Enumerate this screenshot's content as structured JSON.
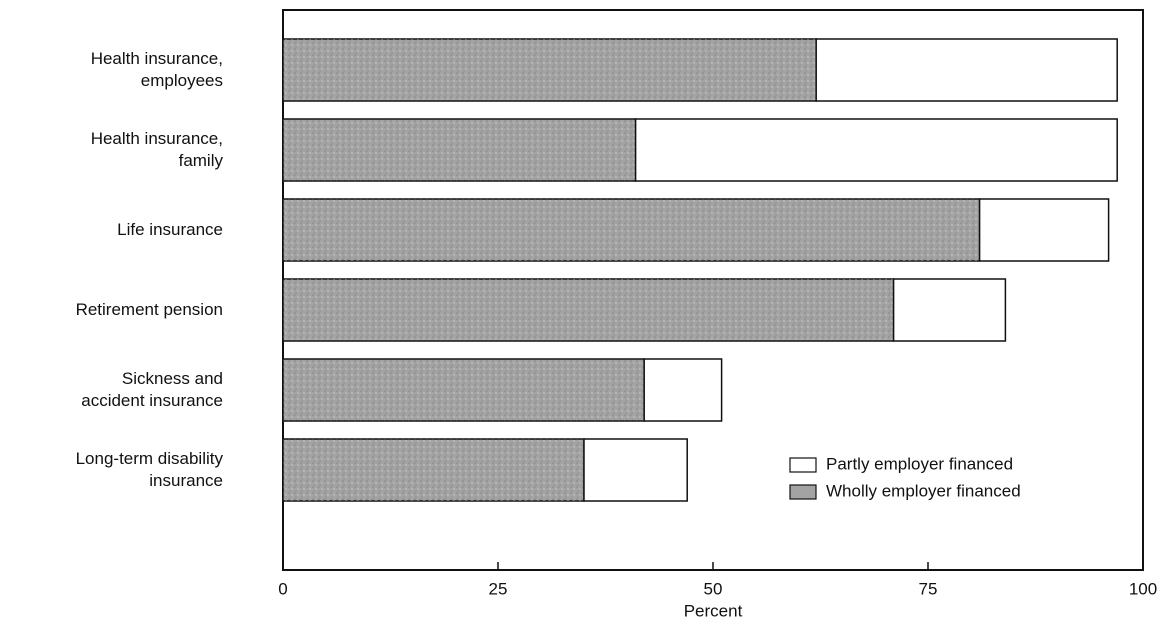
{
  "chart_data": {
    "type": "stacked-bar-horizontal",
    "categories": [
      "Health insurance,\nemployees",
      "Health insurance,\nfamily",
      "Life insurance",
      "Retirement pension",
      "Sickness and\naccident insurance",
      "Long-term disability\ninsurance"
    ],
    "series": [
      {
        "name": "Wholly employer financed",
        "color": "#a3a3a3",
        "values": [
          62,
          41,
          81,
          71,
          42,
          35
        ]
      },
      {
        "name": "Partly employer financed",
        "color": "#ffffff",
        "values": [
          35,
          56,
          15,
          13,
          9,
          12
        ]
      }
    ],
    "xlabel": "Percent",
    "xlim": [
      0,
      100
    ],
    "xticks": [
      0,
      25,
      50,
      75,
      100
    ],
    "legend": "lower right"
  }
}
